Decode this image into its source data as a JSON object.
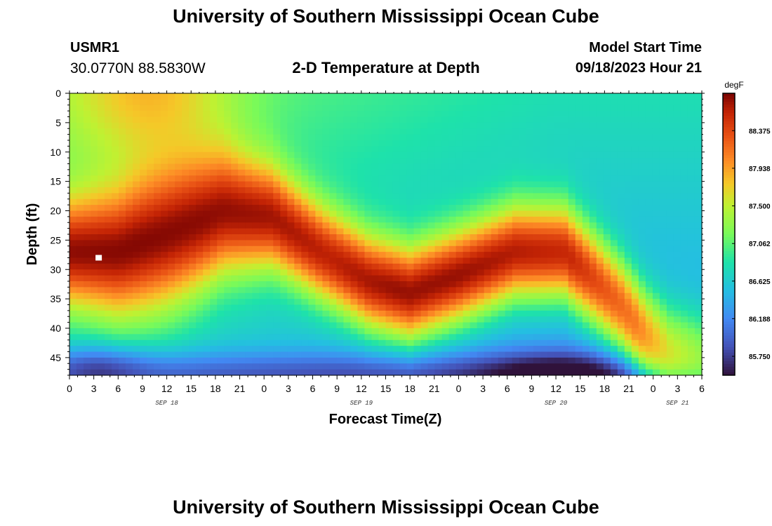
{
  "page": {
    "title_top": "University of Southern Mississippi Ocean Cube",
    "title_bottom": "University of Southern Mississippi Ocean Cube",
    "station_id": "USMR1",
    "station_coords": "30.0770N  88.5830W",
    "subtitle": "2-D Temperature at Depth",
    "model_label": "Model Start Time",
    "model_time": "09/18/2023 Hour 21"
  },
  "chart_data": {
    "type": "heatmap",
    "title": "2-D Temperature at Depth",
    "xlabel": "Forecast Time(Z)",
    "ylabel": "Depth (ft)",
    "x_range_hours": [
      0,
      78
    ],
    "x_ticks": [
      "0",
      "3",
      "6",
      "9",
      "12",
      "15",
      "18",
      "21",
      "0",
      "3",
      "6",
      "9",
      "12",
      "15",
      "18",
      "21",
      "0",
      "3",
      "6",
      "9",
      "12",
      "15",
      "18",
      "21",
      "0",
      "3",
      "6"
    ],
    "day_labels": [
      {
        "label": "SEP 18",
        "hour": 12
      },
      {
        "label": "SEP 19",
        "hour": 36
      },
      {
        "label": "SEP 20",
        "hour": 60
      },
      {
        "label": "SEP 21",
        "hour": 75
      }
    ],
    "y_range_ft": [
      0,
      48
    ],
    "y_ticks": [
      0,
      5,
      10,
      15,
      20,
      25,
      30,
      35,
      40,
      45
    ],
    "colorbar": {
      "unit": "degF",
      "min": 85.53,
      "max": 88.81,
      "labels": [
        "88.375",
        "87.938",
        "87.500",
        "87.062",
        "86.625",
        "86.188",
        "85.750"
      ]
    },
    "marker": {
      "hour": 3.6,
      "depth_ft": 28
    },
    "warm_core_ridge": [
      {
        "hour": 0,
        "depth_ft": 27
      },
      {
        "hour": 6,
        "depth_ft": 27
      },
      {
        "hour": 12,
        "depth_ft": 24
      },
      {
        "hour": 19,
        "depth_ft": 20
      },
      {
        "hour": 25,
        "depth_ft": 21
      },
      {
        "hour": 31,
        "depth_ft": 27
      },
      {
        "hour": 37,
        "depth_ft": 32
      },
      {
        "hour": 42,
        "depth_ft": 34
      },
      {
        "hour": 48,
        "depth_ft": 31
      },
      {
        "hour": 55,
        "depth_ft": 27
      },
      {
        "hour": 61,
        "depth_ft": 27
      },
      {
        "hour": 65,
        "depth_ft": 32
      },
      {
        "hour": 68,
        "depth_ft": 36
      },
      {
        "hour": 71,
        "depth_ft": 41
      },
      {
        "hour": 74,
        "depth_ft": 44
      },
      {
        "hour": 78,
        "depth_ft": 45
      }
    ],
    "warm_core_peak_degF": [
      {
        "hour": 0,
        "value": 88.75
      },
      {
        "hour": 8,
        "value": 88.78
      },
      {
        "hour": 16,
        "value": 88.76
      },
      {
        "hour": 24,
        "value": 88.7
      },
      {
        "hour": 32,
        "value": 88.6
      },
      {
        "hour": 40,
        "value": 88.72
      },
      {
        "hour": 48,
        "value": 88.72
      },
      {
        "hour": 56,
        "value": 88.62
      },
      {
        "hour": 62,
        "value": 88.55
      },
      {
        "hour": 66,
        "value": 88.3
      },
      {
        "hour": 70,
        "value": 88.1
      },
      {
        "hour": 74,
        "value": 87.6
      },
      {
        "hour": 78,
        "value": 87.3
      }
    ]
  }
}
